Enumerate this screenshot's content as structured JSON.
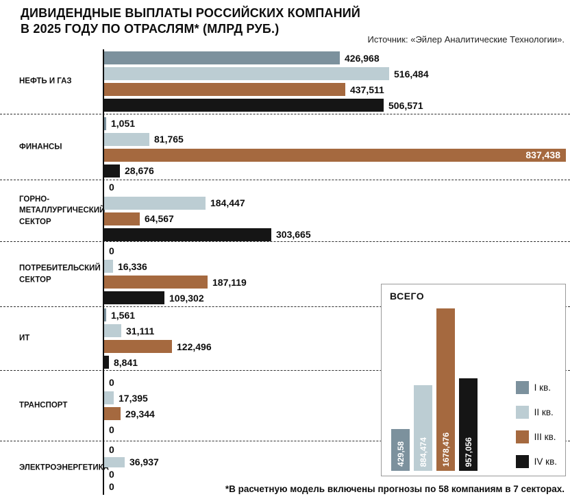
{
  "header": {
    "title_line1": "ДИВИДЕНДНЫЕ ВЫПЛАТЫ РОССИЙСКИХ КОМПАНИЙ",
    "title_line2": "В 2025 ГОДУ ПО ОТРАСЛЯМ* (МЛРД РУБ.)",
    "source": "Источник: «Эйлер Аналитические Технологии»."
  },
  "footnote": "*В расчетную модель включены прогнозы по 58 компаниям в 7 секторах.",
  "colors": {
    "series": [
      "#7c919d",
      "#bccdd3",
      "#a5693f",
      "#151515"
    ]
  },
  "legend": [
    "I кв.",
    "II кв.",
    "III кв.",
    "IV кв."
  ],
  "chart_data": {
    "type": "bar",
    "orientation": "horizontal",
    "title": "ДИВИДЕНДНЫЕ ВЫПЛАТЫ РОССИЙСКИХ КОМПАНИЙ В 2025 ГОДУ ПО ОТРАСЛЯМ* (МЛРД РУБ.)",
    "unit": "млрд руб.",
    "legend_position": "inset bottom-right",
    "grid": false,
    "max_value": 837.438,
    "series_names": [
      "I кв.",
      "II кв.",
      "III кв.",
      "IV кв."
    ],
    "sectors": [
      {
        "label_lines": [
          "НЕФТЬ И ГАЗ"
        ],
        "values": [
          426.968,
          516.484,
          437.511,
          506.571
        ],
        "displays": [
          "426,968",
          "516,484",
          "437,511",
          "506,571"
        ]
      },
      {
        "label_lines": [
          "ФИНАНСЫ"
        ],
        "values": [
          1.051,
          81.765,
          837.438,
          28.676
        ],
        "displays": [
          "1,051",
          "81,765",
          "837,438",
          "28,676"
        ],
        "label_inside": [
          false,
          false,
          true,
          false
        ]
      },
      {
        "label_lines": [
          "ГОРНО-",
          "МЕТАЛЛУРГИЧЕСКИЙ",
          "СЕКТОР"
        ],
        "values": [
          0,
          184.447,
          64.567,
          303.665
        ],
        "displays": [
          "0",
          "184,447",
          "64,567",
          "303,665"
        ]
      },
      {
        "label_lines": [
          "ПОТРЕБИТЕЛЬСКИЙ",
          "СЕКТОР"
        ],
        "values": [
          0,
          16.336,
          187.119,
          109.302
        ],
        "displays": [
          "0",
          "16,336",
          "187,119",
          "109,302"
        ]
      },
      {
        "label_lines": [
          "ИТ"
        ],
        "values": [
          1.561,
          31.111,
          122.496,
          8.841
        ],
        "displays": [
          "1,561",
          "31,111",
          "122,496",
          "8,841"
        ]
      },
      {
        "label_lines": [
          "ТРАНСПОРТ"
        ],
        "values": [
          0,
          17.395,
          29.344,
          0
        ],
        "displays": [
          "0",
          "17,395",
          "29,344",
          "0"
        ]
      },
      {
        "label_lines": [
          "ЭЛЕКТРОЭНЕРГЕТИКА"
        ],
        "values": [
          0,
          36.937,
          0,
          0
        ],
        "displays": [
          "0",
          "36,937",
          "0",
          "0"
        ]
      }
    ],
    "inset": {
      "title": "ВСЕГО",
      "max": 1678.476,
      "values": [
        429.58,
        884.474,
        1678.476,
        957.056
      ],
      "displays": [
        "429,58",
        "884,474",
        "1678,476",
        "957,056"
      ]
    }
  }
}
